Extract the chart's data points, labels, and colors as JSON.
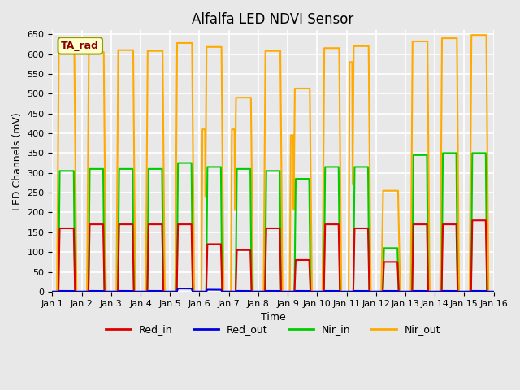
{
  "title": "Alfalfa LED NDVI Sensor",
  "xlabel": "Time",
  "ylabel": "LED Channels (mV)",
  "ylim": [
    0,
    660
  ],
  "yticks": [
    0,
    50,
    100,
    150,
    200,
    250,
    300,
    350,
    400,
    450,
    500,
    550,
    600,
    650
  ],
  "annotation_text": "TA_rad",
  "background_color": "#e8e8e8",
  "plot_background": "#e8e8e8",
  "grid_color": "white",
  "colors": {
    "Red_in": "#dd0000",
    "Red_out": "#0000dd",
    "Nir_in": "#00cc00",
    "Nir_out": "#ffaa00"
  },
  "x_tick_labels": [
    "Jan 1",
    "Jan 2",
    "Jan 3",
    "Jan 4",
    "Jan 5",
    "Jan 6",
    "Jan 7",
    "Jan 8",
    "Jan 9",
    "Jan 10",
    "Jan 11",
    "Jan 12",
    "Jan 13",
    "Jan 14",
    "Jan 15",
    "Jan 16"
  ],
  "x_tick_positions": [
    0,
    1,
    2,
    3,
    4,
    5,
    6,
    7,
    8,
    9,
    10,
    11,
    12,
    13,
    14,
    15
  ],
  "days": 15,
  "red_in_peaks": [
    160,
    170,
    170,
    170,
    170,
    120,
    105,
    160,
    80,
    170,
    160,
    75,
    170,
    170,
    180
  ],
  "nir_in_peaks": [
    305,
    310,
    310,
    310,
    325,
    315,
    310,
    305,
    285,
    315,
    315,
    110,
    345,
    350,
    350
  ],
  "nir_out_peaks": [
    608,
    605,
    610,
    608,
    628,
    618,
    490,
    608,
    513,
    615,
    620,
    255,
    632,
    640,
    648
  ],
  "red_out_peaks": [
    2,
    2,
    2,
    2,
    8,
    5,
    2,
    2,
    2,
    2,
    2,
    2,
    2,
    2,
    2
  ],
  "spike_rise": [
    0.25,
    0.27,
    0.27,
    0.27,
    0.27,
    0.27,
    0.27,
    0.27,
    0.27,
    0.27,
    0.27,
    0.27,
    0.27,
    0.27,
    0.27
  ],
  "spike_fall": [
    0.73,
    0.73,
    0.73,
    0.73,
    0.73,
    0.73,
    0.73,
    0.73,
    0.73,
    0.73,
    0.73,
    0.73,
    0.73,
    0.73,
    0.73
  ],
  "nir_out_secondary": {
    "5": {
      "peak": 410,
      "rise": 0.07,
      "fall": 0.22
    },
    "6": {
      "peak": 410,
      "rise": 0.07,
      "fall": 0.22
    },
    "8": {
      "peak": 395,
      "rise": 0.07,
      "fall": 0.22
    },
    "10": {
      "peak": 580,
      "rise": 0.07,
      "fall": 0.22
    }
  },
  "nir_out_extra": {
    "8": {
      "peak": 215,
      "rise": 0.55,
      "fall": 0.7
    }
  }
}
